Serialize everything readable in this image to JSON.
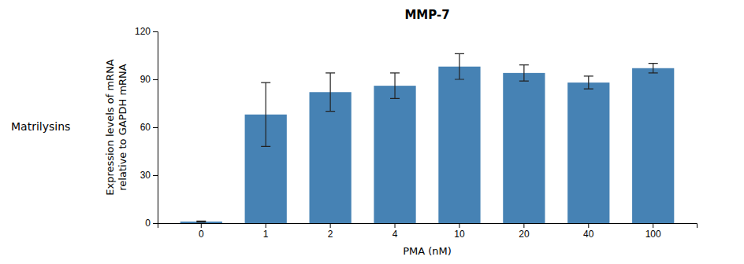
{
  "chart_data": {
    "type": "bar",
    "title": "MMP-7",
    "xlabel": "PMA (nM)",
    "ylabel": "Expression levels of mRNA\nrelative to GAPDH mRNA",
    "annotations": [
      "Matrilysins"
    ],
    "categories": [
      "0",
      "1",
      "2",
      "4",
      "10",
      "20",
      "40",
      "100"
    ],
    "values": [
      1,
      68,
      82,
      86,
      98,
      94,
      88,
      97
    ],
    "errors": [
      0.3,
      20,
      12,
      8,
      8,
      5,
      4,
      3
    ],
    "ylim": [
      0,
      120
    ],
    "yticks": [
      0,
      30,
      60,
      90,
      120
    ],
    "grid": false
  }
}
